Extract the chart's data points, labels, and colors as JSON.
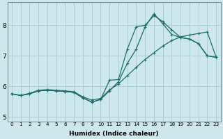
{
  "xlabel": "Humidex (Indice chaleur)",
  "bg_color": "#cce8ec",
  "grid_color": "#aacdd4",
  "line_color": "#1a6b6b",
  "xlim": [
    -0.5,
    23.5
  ],
  "ylim": [
    4.85,
    8.75
  ],
  "xticks": [
    0,
    1,
    2,
    3,
    4,
    5,
    6,
    7,
    8,
    9,
    10,
    11,
    12,
    13,
    14,
    15,
    16,
    17,
    18,
    19,
    20,
    21,
    22,
    23
  ],
  "yticks": [
    5,
    6,
    7,
    8
  ],
  "line1_x": [
    0,
    1,
    2,
    3,
    4,
    5,
    6,
    7,
    8,
    9,
    10,
    11,
    12,
    13,
    14,
    15,
    16,
    17,
    18,
    19,
    20,
    21,
    22,
    23
  ],
  "line1_y": [
    5.75,
    5.7,
    5.75,
    5.85,
    5.87,
    5.85,
    5.83,
    5.8,
    5.62,
    5.48,
    5.57,
    6.2,
    6.22,
    7.22,
    7.95,
    8.0,
    8.32,
    8.12,
    7.85,
    7.6,
    7.55,
    7.4,
    7.0,
    6.95
  ],
  "line2_x": [
    0,
    1,
    2,
    3,
    4,
    5,
    6,
    7,
    8,
    9,
    10,
    11,
    12,
    13,
    14,
    15,
    16,
    17,
    18,
    19,
    20,
    21,
    22,
    23
  ],
  "line2_y": [
    5.75,
    5.7,
    5.75,
    5.85,
    5.87,
    5.85,
    5.83,
    5.8,
    5.62,
    5.48,
    5.57,
    5.85,
    6.15,
    6.75,
    7.22,
    7.95,
    8.38,
    8.05,
    7.7,
    7.6,
    7.55,
    7.4,
    7.0,
    6.95
  ],
  "line3_x": [
    0,
    1,
    2,
    3,
    4,
    5,
    6,
    7,
    8,
    9,
    10,
    11,
    12,
    13,
    14,
    15,
    16,
    17,
    18,
    19,
    20,
    21,
    22,
    23
  ],
  "line3_y": [
    5.75,
    5.7,
    5.77,
    5.87,
    5.89,
    5.87,
    5.85,
    5.82,
    5.65,
    5.55,
    5.6,
    5.88,
    6.08,
    6.35,
    6.62,
    6.88,
    7.1,
    7.32,
    7.5,
    7.62,
    7.68,
    7.73,
    7.78,
    6.95
  ]
}
